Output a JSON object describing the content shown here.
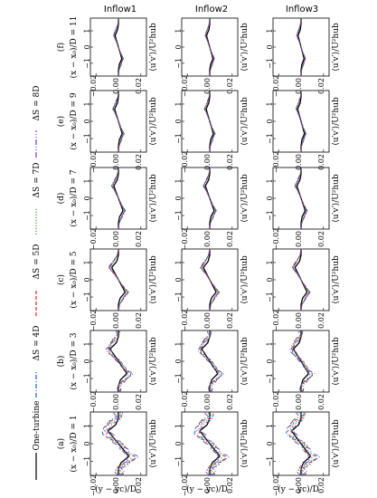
{
  "column_headers": [
    "Inflow1",
    "Inflow2",
    "Inflow3"
  ],
  "ylabel_right": "⟨u′v′⟩/U²hub",
  "xlabel_bottom": "(y − yc)/D",
  "colors": {
    "one_turbine": "#000000",
    "ds4": "#1f5fd6",
    "ds5": "#c8302a",
    "ds7": "#2e9b3a",
    "ds8": "#7b3fb0"
  },
  "legend": [
    {
      "label": "One-turbine",
      "style": "solid",
      "color": "#000000"
    },
    {
      "label": "ΔS = 4D",
      "style": "dashdot",
      "color": "#1f5fd6"
    },
    {
      "label": "ΔS = 5D",
      "style": "dashed",
      "color": "#c8302a"
    },
    {
      "label": "ΔS = 7D",
      "style": "dotted",
      "color": "#2e9b3a"
    },
    {
      "label": "ΔS = 8D",
      "style": "dashdot2",
      "color": "#7b3fb0"
    }
  ],
  "rows": [
    {
      "tag": "(a)",
      "station": "(x − x₀)/D = 1"
    },
    {
      "tag": "(b)",
      "station": "(x − x₀)/D = 3"
    },
    {
      "tag": "(c)",
      "station": "(x − x₀)/D = 5"
    },
    {
      "tag": "(d)",
      "station": "(x − x₀)/D = 7"
    },
    {
      "tag": "(e)",
      "station": "(x − x₀)/D = 9"
    },
    {
      "tag": "(f)",
      "station": "(x − x₀)/D = 11"
    }
  ],
  "y_ticks": [
    "−0.02",
    "0.00",
    "0.02"
  ],
  "x_ticks": [
    "1",
    "0",
    "−1"
  ],
  "chart_data": {
    "type": "line",
    "title": "",
    "xlabel": "(y − yc)/D",
    "ylabel": "⟨u′v′⟩/U²hub",
    "xlim": [
      1.5,
      -1.5
    ],
    "ylim": [
      -0.02,
      0.02
    ],
    "grid": false,
    "panels": "6 rows (x−x₀)/D = 1,3,5,7,9,11 × 3 columns Inflow1, Inflow2, Inflow3",
    "x": [
      -1.5,
      -1.2,
      -0.9,
      -0.6,
      -0.3,
      0.0,
      0.3,
      0.6,
      0.9,
      1.2,
      1.5
    ],
    "series": [
      {
        "name": "One-turbine",
        "values": [
          0.0,
          0.0,
          0.0015,
          0.006,
          0.003,
          0.0,
          -0.003,
          -0.006,
          -0.0015,
          0.0,
          0.0
        ]
      },
      {
        "name": "ΔS = 4D",
        "values": [
          0.0,
          0.001,
          0.005,
          0.009,
          0.004,
          0.0,
          -0.004,
          -0.009,
          -0.005,
          -0.001,
          0.0
        ]
      },
      {
        "name": "ΔS = 5D",
        "values": [
          0.0,
          0.001,
          0.0045,
          0.0085,
          0.004,
          0.0,
          -0.004,
          -0.0085,
          -0.0045,
          -0.001,
          0.0
        ]
      },
      {
        "name": "ΔS = 7D",
        "values": [
          0.0,
          0.001,
          0.004,
          0.008,
          0.0035,
          0.0,
          -0.0035,
          -0.008,
          -0.004,
          -0.001,
          0.0
        ]
      },
      {
        "name": "ΔS = 8D",
        "values": [
          0.0,
          0.001,
          0.004,
          0.0078,
          0.0035,
          0.0,
          -0.0035,
          -0.0078,
          -0.004,
          -0.001,
          0.0
        ]
      }
    ]
  }
}
